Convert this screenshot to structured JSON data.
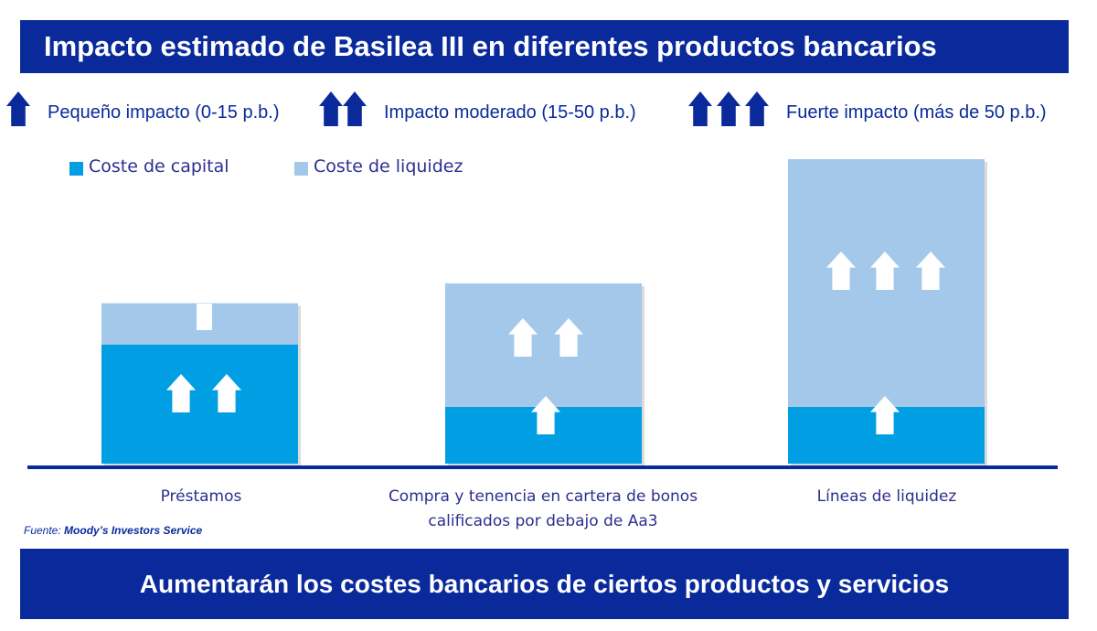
{
  "title": "Impacto estimado de Basilea III en diferentes productos bancarios",
  "legend_impact": [
    {
      "arrows": 1,
      "label": "Pequeño impacto (0-15 p.b.)"
    },
    {
      "arrows": 2,
      "label": "Impacto moderado (15-50 p.b.)"
    },
    {
      "arrows": 3,
      "label": "Fuerte impacto (más de 50 p.b.)"
    }
  ],
  "colors": {
    "banner": "#0a2a9c",
    "capital": "#009fe3",
    "liquidity": "#a3c8ea",
    "arrow_legend": "#0a2a9c",
    "arrow_bar": "#ffffff"
  },
  "chart_data": {
    "type": "bar",
    "stacked": true,
    "categories": [
      "Préstamos",
      "Compra y tenencia en cartera de bonos calificados por debajo de Aa3",
      "Líneas de liquidez"
    ],
    "category_lines": [
      [
        "Préstamos"
      ],
      [
        "Compra y tenencia en cartera de bonos",
        "calificados por debajo de Aa3"
      ],
      [
        "Líneas de liquidez"
      ]
    ],
    "series": [
      {
        "name": "Coste de capital",
        "values": [
          2.1,
          1.0,
          1.0
        ],
        "impact_arrows": [
          2,
          1,
          1
        ]
      },
      {
        "name": "Coste de liquidez",
        "values": [
          0.73,
          2.18,
          4.37
        ],
        "impact_arrows": [
          1,
          2,
          3
        ]
      }
    ],
    "ylim": [
      0,
      5.5
    ],
    "axis_labels_shown": false,
    "grid": false,
    "legend": "top-left"
  },
  "source": {
    "label": "Fuente:",
    "value": "Moody’s Investors Service"
  },
  "footer": "Aumentarán los costes bancarios de ciertos productos y servicios"
}
